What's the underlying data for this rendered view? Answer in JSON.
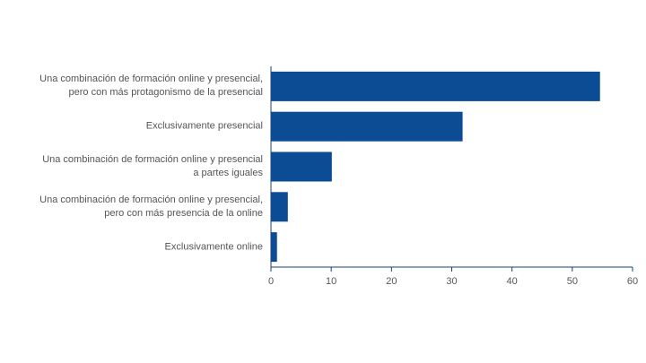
{
  "chart_data": {
    "type": "bar",
    "orientation": "horizontal",
    "categories": [
      "Una combinación de formación online y presencial,\npero con más protagonismo de la presencial",
      "Exclusivamente presencial",
      "Una combinación de formación online y presencial\na partes iguales",
      "Una combinación de formación online y presencial,\npero con más presencia de la online",
      "Exclusivamente online"
    ],
    "values": [
      54.6,
      31.8,
      10.1,
      2.8,
      1.0
    ],
    "color": "#0b4c95",
    "xlim": [
      0,
      60
    ],
    "xticks": [
      0,
      10,
      20,
      30,
      40,
      50,
      60
    ],
    "grid": false
  }
}
